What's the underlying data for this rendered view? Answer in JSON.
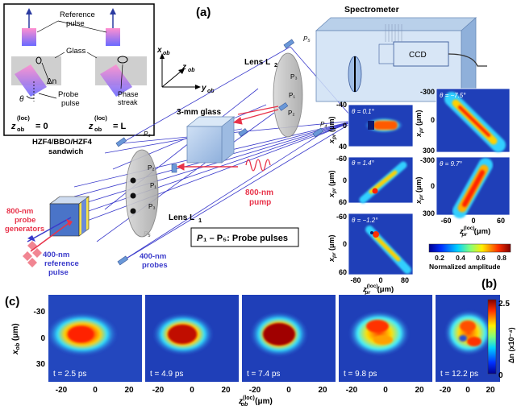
{
  "panel_labels": {
    "a": "(a)",
    "b": "(b)",
    "c": "(c)"
  },
  "inset": {
    "reference_pulse": "Reference\npulse",
    "glass": "Glass",
    "delta_n": "Δn",
    "probe_pulse": "Probe\npulse",
    "theta": "θ",
    "phase_streak": "Phase\nstreak",
    "z0": "z",
    "z0_sup": "(loc)",
    "z0_sub": "ob",
    "z0_eq": " = 0",
    "zL_eq": " = L"
  },
  "setup": {
    "spectrometer": "Spectrometer",
    "ccd": "CCD",
    "lens_l2": "Lens L",
    "lens_l2_sub": "2",
    "lens_l1": "Lens L",
    "lens_l1_sub": "1",
    "glass": "3-mm glass",
    "sandwich": "HZF4/BBO/HZF4\nsandwich",
    "probe_generators": "800-nm\nprobe\ngenerators",
    "reference_pulse": "400-nm\nreference\npulse",
    "probes": "400-nm\nprobes",
    "pump": "800-nm\npump",
    "probe_legend": "P",
    "probe_legend_rest": "₁ – P₅: Probe pulses",
    "axis_x": "x",
    "axis_y": "y",
    "axis_z": "z",
    "axis_sub": "ob",
    "p_labels": [
      "P₁",
      "P₂",
      "P₃",
      "P₄",
      "P₅"
    ]
  },
  "panel_b": {
    "maps": [
      {
        "theta": "θ = 0.1°"
      },
      {
        "theta": "θ = 1.4°"
      },
      {
        "theta": "θ = −1.2°"
      },
      {
        "theta": "θ = −7.5°"
      },
      {
        "theta": "θ = 9.7°"
      }
    ],
    "left_yticks_1": [
      "-40",
      "0",
      "40"
    ],
    "left_yticks_2": [
      "-60",
      "0",
      "60"
    ],
    "left_yticks_3": [
      "-60",
      "0",
      "60"
    ],
    "right_yticks_1": [
      "-300",
      "0",
      "300"
    ],
    "right_yticks_2": [
      "-300",
      "0",
      "300"
    ],
    "ylabel": "x",
    "ylabel_sub": "pr",
    "ylabel_unit": " (μm)",
    "xticks_left": [
      "-80",
      "0",
      "80"
    ],
    "xticks_right": [
      "-60",
      "0",
      "60"
    ],
    "xlabel": "z",
    "xlabel_sup": "(loc)",
    "xlabel_sub": "pr",
    "xlabel_unit": " (μm)",
    "colorbar_ticks": [
      "0.2",
      "0.4",
      "0.6",
      "0.8"
    ],
    "colorbar_label": "Normalized amplitude"
  },
  "panel_c": {
    "frames": [
      {
        "time": "t = 2.5 ps"
      },
      {
        "time": "t = 4.9 ps"
      },
      {
        "time": "t = 7.4 ps"
      },
      {
        "time": "t = 9.8 ps"
      },
      {
        "time": "t = 12.2 ps"
      }
    ],
    "yticks": [
      "-30",
      "0",
      "30"
    ],
    "ylabel": "x",
    "ylabel_sub": "ob",
    "ylabel_unit": " (μm)",
    "xticks": [
      "-20",
      "0",
      "20"
    ],
    "xlabel": "z",
    "xlabel_sup": "(loc)",
    "xlabel_sub": "ob",
    "xlabel_unit": " (μm)",
    "colorbar_top": "2.5",
    "colorbar_bottom": "0",
    "colorbar_label": "Δn (x10⁻⁴)"
  },
  "colors": {
    "blue_line": "#3a3acb",
    "red": "#e8334a",
    "map_bg": "#1f3fb8"
  }
}
